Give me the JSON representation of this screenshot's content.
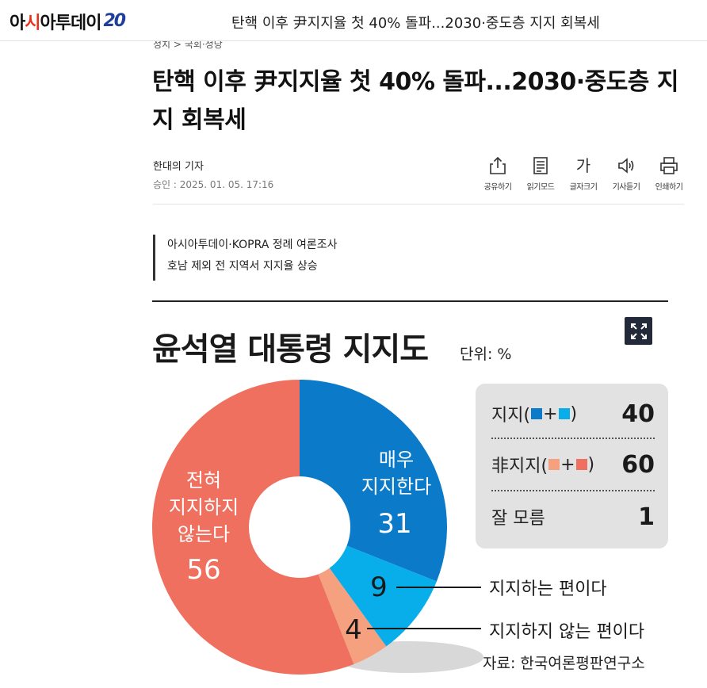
{
  "header": {
    "logo_text_a": "아",
    "logo_text_b": "시",
    "logo_text_c": "아투데이",
    "logo_badge": "20",
    "title": "탄핵 이후 尹지지율 첫 40% 돌파...2030·중도층 지지 회복세"
  },
  "article": {
    "breadcrumb": "정치  >  국회·정당",
    "headline": "탄핵 이후 尹지지율 첫 40% 돌파...2030·중도층 지지 회복세",
    "author": "한대의 기자",
    "date": "승인 : 2025. 01. 05. 17:16",
    "tools": [
      {
        "label": "공유하기",
        "icon": "share-icon"
      },
      {
        "label": "읽기모드",
        "icon": "reading-mode-icon"
      },
      {
        "label": "글자크기",
        "icon": "font-size-icon",
        "glyph": "가"
      },
      {
        "label": "기사듣기",
        "icon": "speaker-icon"
      },
      {
        "label": "인쇄하기",
        "icon": "print-icon"
      }
    ],
    "subhead": [
      "아시아투데이·KOPRA 정례 여론조사",
      "호남 제외 전 지역서 지지율 상승"
    ]
  },
  "chart_data": {
    "type": "pie",
    "title": "윤석열 대통령 지지도",
    "unit": "단위: %",
    "slices": [
      {
        "label": "매우 지지한다",
        "label_lines": [
          "매우",
          "지지한다"
        ],
        "value": 31,
        "color": "#0a7ac9"
      },
      {
        "label": "지지하는 편이다",
        "value": 9,
        "color": "#08aeea"
      },
      {
        "label": "지지하지 않는 편이다",
        "value": 4,
        "color": "#f5a07f"
      },
      {
        "label": "전혀 지지하지 않는다",
        "label_lines": [
          "전혀",
          "지지하지",
          "않는다"
        ],
        "value": 56,
        "color": "#f07060"
      }
    ],
    "summary": [
      {
        "label_pre": "지지(",
        "label_post": ")",
        "colors": [
          "#0a7ac9",
          "#08aeea"
        ],
        "value": "40"
      },
      {
        "label_pre": "非지지(",
        "label_post": ")",
        "colors": [
          "#f5a07f",
          "#f07060"
        ],
        "value": "60"
      },
      {
        "label_pre": "잘 모름",
        "label_post": "",
        "colors": [],
        "value": "1"
      }
    ],
    "source": "자료: 한국여론평판연구소"
  }
}
